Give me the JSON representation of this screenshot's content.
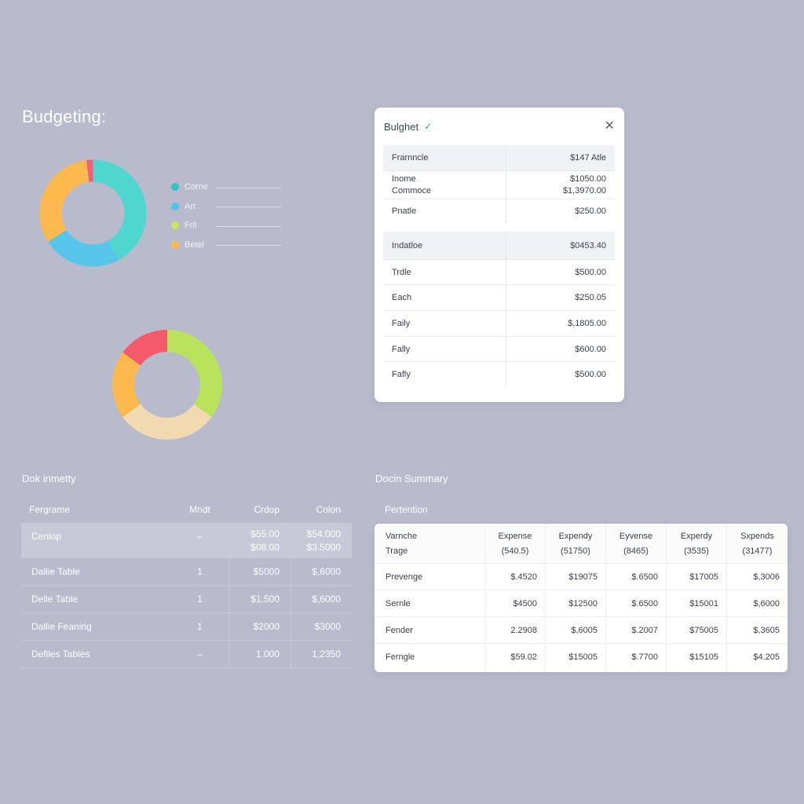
{
  "page": {
    "title": "Budgeting:"
  },
  "charts": {
    "donut_top": {
      "segments": [
        {
          "value": 42,
          "color": "#4fd6cf"
        },
        {
          "value": 24,
          "color": "#55c6ea"
        },
        {
          "value": 32,
          "color": "#fdb84e"
        },
        {
          "value": 2,
          "color": "#f0607a"
        }
      ]
    },
    "donut_bottom": {
      "segments": [
        {
          "value": 35,
          "color": "#b8e35a"
        },
        {
          "value": 30,
          "color": "#f1d9b0"
        },
        {
          "value": 20,
          "color": "#fdb84e"
        },
        {
          "value": 15,
          "color": "#f55a6b"
        }
      ]
    }
  },
  "legend": [
    {
      "label": "Corne",
      "color": "#33c2c9"
    },
    {
      "label": "Art",
      "color": "#4fc4ea"
    },
    {
      "label": "Fril",
      "color": "#c6ea5c"
    },
    {
      "label": "Betel",
      "color": "#fdb84e"
    }
  ],
  "budget": {
    "title": "Bulghet",
    "section1": {
      "header": {
        "label": "Frarnncle",
        "value": "$147 Atle"
      },
      "rows": [
        {
          "label": [
            "Inome",
            "Commoce"
          ],
          "value": [
            "$1050.00",
            "$1,3970.00"
          ]
        },
        {
          "label": [
            "Pnatle"
          ],
          "value": [
            "$250.00"
          ]
        }
      ]
    },
    "section2": {
      "header": {
        "label": "Indatloe",
        "value": "$0453.40"
      },
      "rows": [
        {
          "label": "Trdle",
          "value": "$500.00"
        },
        {
          "label": "Each",
          "value": "$250.05"
        },
        {
          "label": "Faily",
          "value": "$,1805.00"
        },
        {
          "label": "Fally",
          "value": "$600.00"
        },
        {
          "label": "Fafly",
          "value": "$500.00"
        }
      ]
    }
  },
  "left_table": {
    "title": "Dok inmetty",
    "columns": [
      "Fergrame",
      "Mndt",
      "Crdop",
      "Colon"
    ],
    "rows": [
      {
        "c1": "Cenlop",
        "c2": "–",
        "c3": [
          "$55.00",
          "$08.00"
        ],
        "c4": [
          "$54.000",
          "$3.5000"
        ]
      },
      {
        "c1": "Dallie Table",
        "c2": "1",
        "c3": [
          "$5000"
        ],
        "c4": [
          "$,6000"
        ]
      },
      {
        "c1": "Delle Table",
        "c2": "1",
        "c3": [
          "$1.500"
        ],
        "c4": [
          "$,6000"
        ]
      },
      {
        "c1": "Dallie Feaning",
        "c2": "1",
        "c3": [
          "$2000"
        ],
        "c4": [
          "$3000"
        ]
      },
      {
        "c1": "Defiles Tables",
        "c2": "–",
        "c3": [
          "1.000"
        ],
        "c4": [
          "1,2350"
        ]
      }
    ]
  },
  "summary": {
    "title": "Docin Summary",
    "subtitle": "Pertention",
    "header": {
      "c0": [
        "Varnche",
        "Trage"
      ],
      "cols": [
        [
          "Expense",
          "(540.5)"
        ],
        [
          "Expendy",
          "(51750)"
        ],
        [
          "Eyvense",
          "(8465)"
        ],
        [
          "Experdy",
          "(3535)"
        ],
        [
          "Sxpends",
          "(31477)"
        ]
      ]
    },
    "rows": [
      {
        "label": "Prevenge",
        "values": [
          "$.4520",
          "$19075",
          "$.6500",
          "$17005",
          "$,3006"
        ]
      },
      {
        "label": "Sernle",
        "values": [
          "$4500",
          "$12500",
          "$.6500",
          "$15001",
          "$,6000"
        ]
      },
      {
        "label": "Fender",
        "values": [
          "2.2908",
          "$,6005",
          "$.2007",
          "$75005",
          "$,3605"
        ]
      },
      {
        "label": "Ferngle",
        "values": [
          "$59.02",
          "$15005",
          "$.7700",
          "$15105",
          "$4.205"
        ]
      }
    ]
  }
}
